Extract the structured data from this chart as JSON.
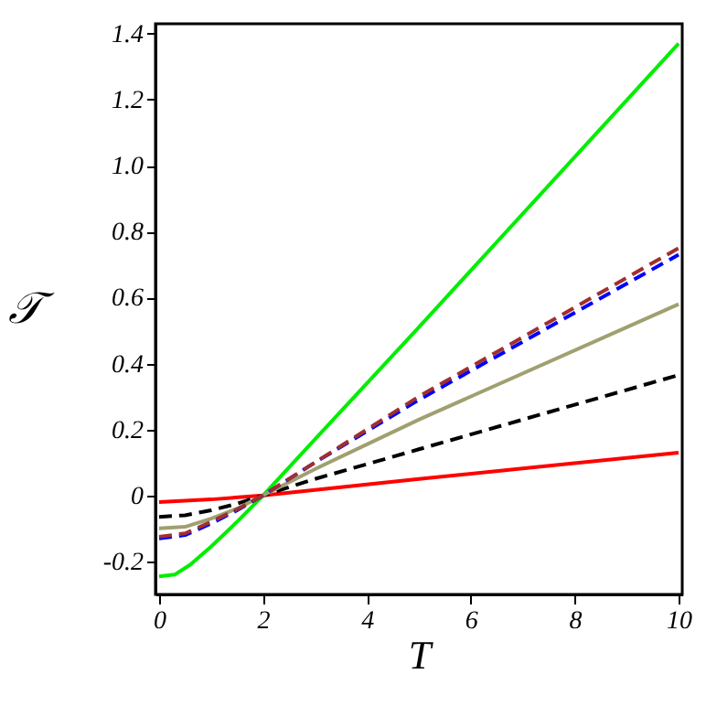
{
  "chart_data": {
    "type": "line",
    "xlabel": "T",
    "ylabel": "𝒯",
    "xlim": [
      -0.07,
      10.07
    ],
    "ylim": [
      -0.3,
      1.43
    ],
    "xticks": [
      0,
      2,
      4,
      6,
      8,
      10
    ],
    "yticks": [
      {
        "value": -0.2,
        "label": "-0.2"
      },
      0,
      0.2,
      0.4,
      0.6,
      0.8,
      {
        "value": 1,
        "label": "1.0"
      },
      1.2,
      1.4
    ],
    "grid": false,
    "series": [
      {
        "color": "#00ee00",
        "line_style": "solid",
        "x": [
          0,
          0.3,
          0.6,
          1,
          1.5,
          2,
          3,
          5,
          10
        ],
        "values": [
          -0.245,
          -0.24,
          -0.21,
          -0.155,
          -0.08,
          0,
          0.17,
          0.51,
          1.37
        ]
      },
      {
        "color": "#ff0000",
        "line_style": "solid",
        "x": [
          0,
          1,
          2,
          5,
          10
        ],
        "values": [
          -0.02,
          -0.012,
          0,
          0.05,
          0.13
        ]
      },
      {
        "color": "#000000",
        "line_style": "dashed",
        "x": [
          0,
          0.5,
          1,
          1.5,
          2,
          3,
          5,
          10
        ],
        "values": [
          -0.065,
          -0.06,
          -0.045,
          -0.025,
          0,
          0.05,
          0.14,
          0.365
        ]
      },
      {
        "color": "#a0a070",
        "line_style": "solid",
        "x": [
          0,
          0.5,
          1,
          1.5,
          2,
          3,
          5,
          10
        ],
        "values": [
          -0.1,
          -0.095,
          -0.07,
          -0.04,
          0,
          0.08,
          0.23,
          0.58
        ]
      },
      {
        "color": "#0000ff",
        "line_style": "dashed",
        "x": [
          0,
          0.5,
          1,
          1.5,
          2,
          3,
          5,
          10
        ],
        "values": [
          -0.13,
          -0.12,
          -0.085,
          -0.045,
          0,
          0.1,
          0.29,
          0.73
        ]
      },
      {
        "color": "#a03030",
        "line_style": "dashed",
        "x": [
          0,
          0.5,
          1,
          1.5,
          2,
          3,
          5,
          10
        ],
        "values": [
          -0.125,
          -0.115,
          -0.08,
          -0.042,
          0,
          0.1,
          0.3,
          0.75
        ]
      }
    ]
  }
}
